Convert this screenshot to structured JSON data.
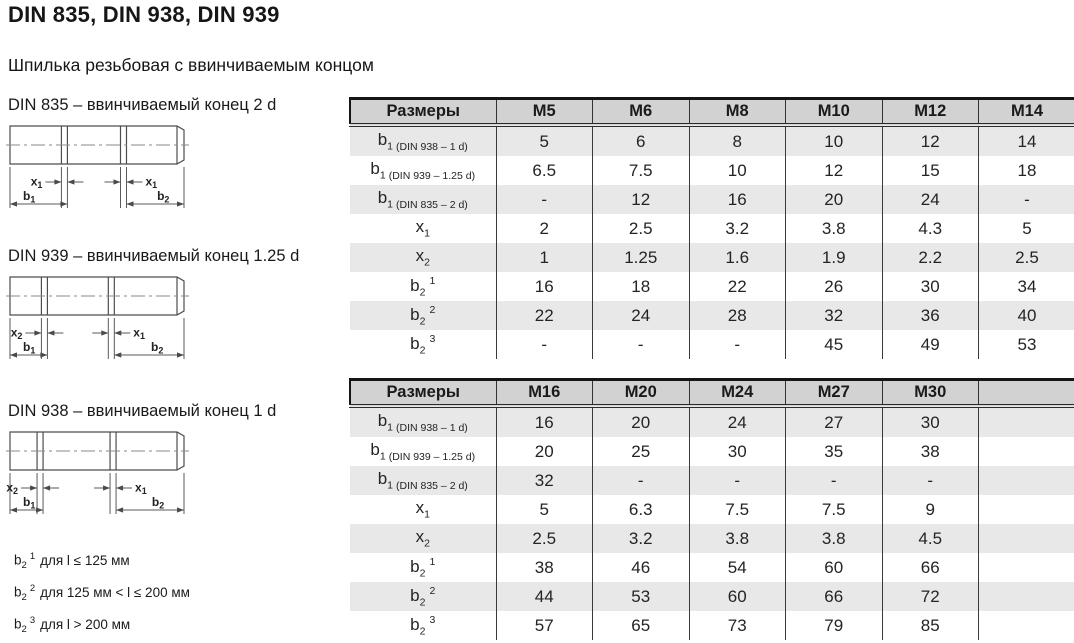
{
  "page": {
    "title": "DIN 835, DIN 938, DIN 939",
    "subtitle": "Шпилька резьбовая с ввинчиваемым концом"
  },
  "diagrams": [
    {
      "caption": "DIN 835 – ввинчиваемый конец 2 d",
      "labels": {
        "x_left": {
          "pre": "x",
          "sub": "1"
        },
        "x_right": {
          "pre": "x",
          "sub": "1"
        },
        "b_left": {
          "pre": "b",
          "sub": "1"
        },
        "b_right": {
          "pre": "b",
          "sub": "2"
        }
      }
    },
    {
      "caption": "DIN 939 – ввинчиваемый конец 1.25 d",
      "labels": {
        "x_left": {
          "pre": "x",
          "sub": "2"
        },
        "x_right": {
          "pre": "x",
          "sub": "1"
        },
        "b_left": {
          "pre": "b",
          "sub": "1"
        },
        "b_right": {
          "pre": "b",
          "sub": "2"
        }
      }
    },
    {
      "caption": "DIN 938 – ввинчиваемый конец 1 d",
      "labels": {
        "x_left": {
          "pre": "x",
          "sub": "2"
        },
        "x_right": {
          "pre": "x",
          "sub": "1"
        },
        "b_left": {
          "pre": "b",
          "sub": "1"
        },
        "b_right": {
          "pre": "b",
          "sub": "2"
        }
      }
    }
  ],
  "footnotes": [
    {
      "pre": "b",
      "sub": "2",
      "sup": "1",
      "text": "для l ≤ 125 мм"
    },
    {
      "pre": "b",
      "sub": "2",
      "sup": "2",
      "text": "для 125 мм < l ≤ 200 мм"
    },
    {
      "pre": "b",
      "sub": "2",
      "sup": "3",
      "text": "для l > 200 мм"
    }
  ],
  "tables": [
    {
      "header": [
        "Размеры",
        "M5",
        "M6",
        "M8",
        "M10",
        "M12",
        "M14"
      ],
      "rows": [
        {
          "label": {
            "pre": "b",
            "sub": "1",
            "note": "(DIN 938 – 1 d)"
          },
          "values": [
            "5",
            "6",
            "8",
            "10",
            "12",
            "14"
          ]
        },
        {
          "label": {
            "pre": "b",
            "sub": "1",
            "note": "(DIN 939 – 1.25 d)"
          },
          "values": [
            "6.5",
            "7.5",
            "10",
            "12",
            "15",
            "18"
          ]
        },
        {
          "label": {
            "pre": "b",
            "sub": "1",
            "note": "(DIN 835 – 2 d)"
          },
          "values": [
            "-",
            "12",
            "16",
            "20",
            "24",
            "-"
          ]
        },
        {
          "label": {
            "pre": "x",
            "sub": "1"
          },
          "values": [
            "2",
            "2.5",
            "3.2",
            "3.8",
            "4.3",
            "5"
          ]
        },
        {
          "label": {
            "pre": "x",
            "sub": "2"
          },
          "values": [
            "1",
            "1.25",
            "1.6",
            "1.9",
            "2.2",
            "2.5"
          ]
        },
        {
          "label": {
            "pre": "b",
            "sub": "2",
            "sup": "1"
          },
          "values": [
            "16",
            "18",
            "22",
            "26",
            "30",
            "34"
          ]
        },
        {
          "label": {
            "pre": "b",
            "sub": "2",
            "sup": "2"
          },
          "values": [
            "22",
            "24",
            "28",
            "32",
            "36",
            "40"
          ]
        },
        {
          "label": {
            "pre": "b",
            "sub": "2",
            "sup": "3"
          },
          "values": [
            "-",
            "-",
            "-",
            "45",
            "49",
            "53"
          ]
        }
      ]
    },
    {
      "header": [
        "Размеры",
        "M16",
        "M20",
        "M24",
        "M27",
        "M30",
        ""
      ],
      "rows": [
        {
          "label": {
            "pre": "b",
            "sub": "1",
            "note": "(DIN 938 – 1 d)"
          },
          "values": [
            "16",
            "20",
            "24",
            "27",
            "30",
            ""
          ]
        },
        {
          "label": {
            "pre": "b",
            "sub": "1",
            "note": "(DIN 939 – 1.25 d)"
          },
          "values": [
            "20",
            "25",
            "30",
            "35",
            "38",
            ""
          ]
        },
        {
          "label": {
            "pre": "b",
            "sub": "1",
            "note": "(DIN 835 – 2 d)"
          },
          "values": [
            "32",
            "-",
            "-",
            "-",
            "-",
            ""
          ]
        },
        {
          "label": {
            "pre": "x",
            "sub": "1"
          },
          "values": [
            "5",
            "6.3",
            "7.5",
            "7.5",
            "9",
            ""
          ]
        },
        {
          "label": {
            "pre": "x",
            "sub": "2"
          },
          "values": [
            "2.5",
            "3.2",
            "3.8",
            "3.8",
            "4.5",
            ""
          ]
        },
        {
          "label": {
            "pre": "b",
            "sub": "2",
            "sup": "1"
          },
          "values": [
            "38",
            "46",
            "54",
            "60",
            "66",
            ""
          ]
        },
        {
          "label": {
            "pre": "b",
            "sub": "2",
            "sup": "2"
          },
          "values": [
            "44",
            "53",
            "60",
            "66",
            "72",
            ""
          ]
        },
        {
          "label": {
            "pre": "b",
            "sub": "2",
            "sup": "3"
          },
          "values": [
            "57",
            "65",
            "73",
            "79",
            "85",
            ""
          ]
        }
      ]
    }
  ],
  "colors": {
    "header_bg": "#d2d2d2",
    "stripe_bg": "#e8e8e8",
    "border": "#333333",
    "text": "#1f1f1f"
  }
}
